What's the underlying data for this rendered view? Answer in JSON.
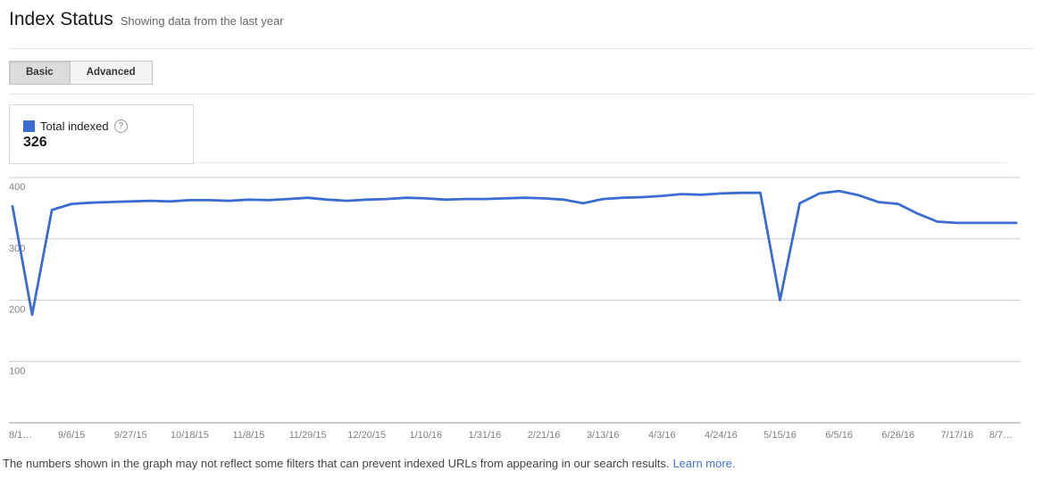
{
  "header": {
    "title": "Index Status",
    "subtitle": "Showing data from the last year"
  },
  "tabs": [
    {
      "label": "Basic",
      "active": true
    },
    {
      "label": "Advanced",
      "active": false
    }
  ],
  "stats_box": {
    "legend_label": "Total indexed",
    "help_icon_glyph": "?",
    "value": "326"
  },
  "footer": {
    "text": "The numbers shown in the graph may not reflect some filters that can prevent indexed URLs from appearing in our search results.",
    "link": "Learn more."
  },
  "colors": {
    "series_blue": "#3b6cd3",
    "link_blue": "#4272d7",
    "gridline": "#cdcdcd",
    "axis_line": "#999999",
    "tick_text": "#808080"
  },
  "chart_data": {
    "type": "line",
    "title": "Index Status - Total indexed over the last year",
    "xlabel": "",
    "ylabel": "",
    "ylim": [
      0,
      400
    ],
    "yticks": [
      100,
      200,
      300,
      400
    ],
    "grid": "horizontal",
    "legend_position": "top-left-box",
    "x_tick_every": 3,
    "x_tick_labels": [
      "8/1…",
      "9/6/15",
      "9/27/15",
      "10/18/15",
      "11/8/15",
      "11/29/15",
      "12/20/15",
      "1/10/16",
      "1/31/16",
      "2/21/16",
      "3/13/16",
      "4/3/16",
      "4/24/16",
      "5/15/16",
      "6/5/16",
      "6/26/16",
      "7/17/16",
      "8/7…"
    ],
    "x": [
      "8/16/15",
      "8/23/15",
      "8/30/15",
      "9/6/15",
      "9/13/15",
      "9/20/15",
      "9/27/15",
      "10/4/15",
      "10/11/15",
      "10/18/15",
      "10/25/15",
      "11/1/15",
      "11/8/15",
      "11/15/15",
      "11/22/15",
      "11/29/15",
      "12/6/15",
      "12/13/15",
      "12/20/15",
      "12/27/15",
      "1/3/16",
      "1/10/16",
      "1/17/16",
      "1/24/16",
      "1/31/16",
      "2/7/16",
      "2/14/16",
      "2/21/16",
      "2/28/16",
      "3/6/16",
      "3/13/16",
      "3/20/16",
      "3/27/16",
      "4/3/16",
      "4/10/16",
      "4/17/16",
      "4/24/16",
      "5/1/16",
      "5/8/16",
      "5/15/16",
      "5/22/16",
      "5/29/16",
      "6/5/16",
      "6/12/16",
      "6/19/16",
      "6/26/16",
      "7/3/16",
      "7/10/16",
      "7/17/16",
      "7/24/16",
      "7/31/16",
      "8/7/16"
    ],
    "series": [
      {
        "name": "Total indexed",
        "color": "#3b6cd3",
        "values": [
          353,
          176,
          347,
          357,
          359,
          360,
          361,
          362,
          361,
          363,
          363,
          362,
          364,
          363,
          365,
          367,
          364,
          362,
          364,
          365,
          367,
          366,
          364,
          365,
          365,
          366,
          367,
          366,
          364,
          358,
          365,
          367,
          368,
          370,
          373,
          372,
          374,
          375,
          375,
          200,
          358,
          374,
          378,
          371,
          360,
          357,
          341,
          328,
          326,
          326,
          326,
          326
        ]
      }
    ]
  }
}
